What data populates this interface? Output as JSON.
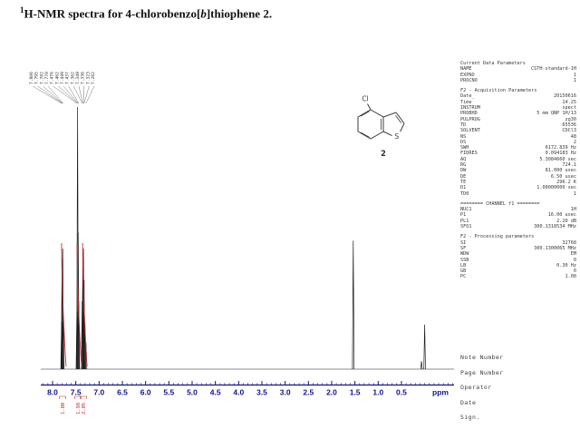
{
  "title": {
    "sup": "1",
    "main": "H-NMR spectra for 4-chlorobenzo[",
    "italic": "b",
    "tail": "]thiophene 2."
  },
  "chart_data": {
    "type": "line",
    "title": "1H-NMR spectrum of 4-chlorobenzo[b]thiophene",
    "xlabel": "ppm",
    "x_axis": {
      "tick_labels": [
        "8.0",
        "7.5",
        "7.0",
        "6.5",
        "6.0",
        "5.5",
        "5.0",
        "4.5",
        "4.0",
        "3.5",
        "3.0",
        "2.5",
        "2.0",
        "1.5",
        "1.0",
        "0.5"
      ],
      "unit": "ppm",
      "range": [
        8.25,
        -0.62
      ],
      "color": "#14148c"
    },
    "y_axis": {
      "visible": false
    },
    "peaks": [
      [
        7.806,
        0.18
      ],
      [
        7.795,
        0.42
      ],
      [
        7.782,
        0.46
      ],
      [
        7.77,
        0.2
      ],
      [
        7.476,
        0.22
      ],
      [
        7.462,
        1.0
      ],
      [
        7.449,
        0.52
      ],
      [
        7.437,
        0.26
      ],
      [
        7.362,
        0.26
      ],
      [
        7.349,
        0.44
      ],
      [
        7.336,
        0.46
      ],
      [
        7.323,
        0.34
      ],
      [
        7.305,
        0.18
      ],
      [
        7.282,
        0.1
      ],
      [
        1.535,
        0.49
      ],
      [
        0.068,
        0.03
      ],
      [
        0.0,
        0.17
      ]
    ],
    "peak_labels": [
      "7.806",
      "7.795",
      "7.782",
      "7.770",
      "7.476",
      "7.462",
      "7.449",
      "7.437",
      "7.362",
      "7.349",
      "7.336",
      "7.323",
      "7.282"
    ],
    "integrals": [
      {
        "ppm": 7.787,
        "value": "1.00"
      },
      {
        "ppm": 7.455,
        "value": "1.98"
      },
      {
        "ppm": 7.335,
        "value": "2.05"
      }
    ],
    "line_color": "#1c1c1c",
    "integral_color": "#c03030"
  },
  "structure": {
    "substituent": "Cl",
    "heteroatom": "S",
    "compound_number": "2"
  },
  "parameters": {
    "lines": [
      {
        "h": "Current Data Parameters"
      },
      {
        "l": "NAME",
        "v": "CSTH-standard-1H"
      },
      {
        "l": "EXPNO",
        "v": "1"
      },
      {
        "l": "PROCNO",
        "v": "1"
      },
      {
        "sp": true
      },
      {
        "h": "F2 - Acquisition Parameters"
      },
      {
        "l": "Date_",
        "v": "20150616"
      },
      {
        "l": "Time",
        "v": "14.25"
      },
      {
        "l": "INSTRUM",
        "v": "spect"
      },
      {
        "l": "PROBHD",
        "v": "5 mm QNP 1H/13"
      },
      {
        "l": "PULPROG",
        "v": "zg30"
      },
      {
        "l": "TD",
        "v": "65536"
      },
      {
        "l": "SOLVENT",
        "v": "CDCl3"
      },
      {
        "l": "NS",
        "v": "48"
      },
      {
        "l": "DS",
        "v": "2"
      },
      {
        "l": "SWH",
        "v": "6172.839 Hz"
      },
      {
        "l": "FIDRES",
        "v": "0.094183 Hz"
      },
      {
        "l": "AQ",
        "v": "5.3084660 sec"
      },
      {
        "l": "RG",
        "v": "724.1"
      },
      {
        "l": "DW",
        "v": "81.000 usec"
      },
      {
        "l": "DE",
        "v": "6.50 usec"
      },
      {
        "l": "TE",
        "v": "296.2 K"
      },
      {
        "l": "D1",
        "v": "1.00000000 sec"
      },
      {
        "l": "TD0",
        "v": "1"
      },
      {
        "sp": true
      },
      {
        "h": "======== CHANNEL f1 ========"
      },
      {
        "l": "NUC1",
        "v": "1H"
      },
      {
        "l": "P1",
        "v": "16.00 usec"
      },
      {
        "l": "PL1",
        "v": "2.20 dB"
      },
      {
        "l": "SFO1",
        "v": "300.1318534 MHz"
      },
      {
        "sp": true
      },
      {
        "h": "F2 - Processing parameters"
      },
      {
        "l": "SI",
        "v": "32768"
      },
      {
        "l": "SF",
        "v": "300.1300065 MHz"
      },
      {
        "l": "WDW",
        "v": "EM"
      },
      {
        "l": "SSB",
        "v": "0"
      },
      {
        "l": "LB",
        "v": "0.30 Hz"
      },
      {
        "l": "GB",
        "v": "0"
      },
      {
        "l": "PC",
        "v": "1.00"
      }
    ]
  },
  "footer": {
    "items": [
      "Note Number",
      "Page Number",
      "Operator",
      "Date",
      "Sign."
    ]
  }
}
